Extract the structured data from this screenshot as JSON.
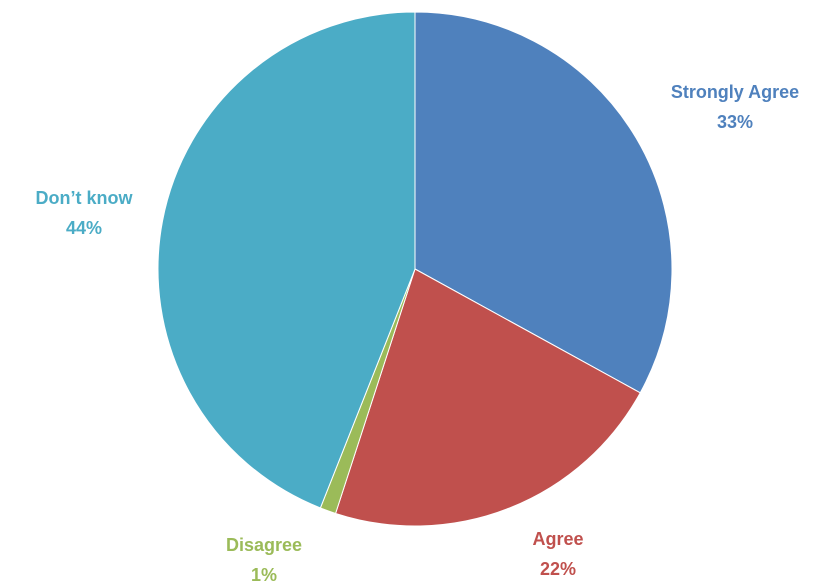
{
  "chart_data": {
    "type": "pie",
    "title": "",
    "slices": [
      {
        "label": "Strongly Agree",
        "value": 33,
        "display": "33%",
        "color": "#4F81BD"
      },
      {
        "label": "Agree",
        "value": 22,
        "display": "22%",
        "color": "#C0504D"
      },
      {
        "label": "Disagree",
        "value": 1,
        "display": "1%",
        "color": "#9BBB59"
      },
      {
        "label": "Don’t know",
        "value": 44,
        "display": "44%",
        "color": "#4BACC6"
      }
    ],
    "start_angle_deg": 0,
    "direction": "clockwise",
    "legend": "none",
    "data_labels": "outside, category name and percentage, colored like slice"
  }
}
